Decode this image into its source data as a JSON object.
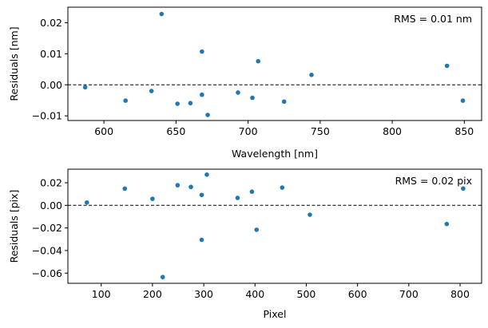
{
  "chart_data": [
    {
      "type": "scatter",
      "xlabel": "Wavelength [nm]",
      "ylabel": "Residuals [nm]",
      "annotation": "RMS = 0.01 nm",
      "xlim": [
        575,
        862
      ],
      "ylim": [
        -0.0115,
        0.025
      ],
      "xticks": [
        600,
        650,
        700,
        750,
        800,
        850
      ],
      "yticks": [
        -0.01,
        0.0,
        0.01,
        0.02
      ],
      "ytick_labels": [
        "−0.01",
        "0.00",
        "0.01",
        "0.02"
      ],
      "reference_line": 0,
      "marker_color": "#1f77b4",
      "points": [
        {
          "x": 587,
          "y": -0.0008
        },
        {
          "x": 615,
          "y": -0.0051
        },
        {
          "x": 633,
          "y": -0.002
        },
        {
          "x": 640,
          "y": 0.0228
        },
        {
          "x": 651,
          "y": -0.0061
        },
        {
          "x": 660,
          "y": -0.0059
        },
        {
          "x": 668,
          "y": -0.0032
        },
        {
          "x": 668,
          "y": 0.0107
        },
        {
          "x": 672,
          "y": -0.0097
        },
        {
          "x": 693,
          "y": -0.0025
        },
        {
          "x": 703,
          "y": -0.0042
        },
        {
          "x": 707,
          "y": 0.0076
        },
        {
          "x": 725,
          "y": -0.0054
        },
        {
          "x": 744,
          "y": 0.0032
        },
        {
          "x": 838,
          "y": 0.0061
        },
        {
          "x": 849,
          "y": -0.0051
        }
      ]
    },
    {
      "type": "scatter",
      "xlabel": "Pixel",
      "ylabel": "Residuals [pix]",
      "annotation": "RMS = 0.02 pix",
      "xlim": [
        35,
        842
      ],
      "ylim": [
        -0.069,
        0.032
      ],
      "xticks": [
        100,
        200,
        300,
        400,
        500,
        600,
        700,
        800
      ],
      "yticks": [
        -0.06,
        -0.04,
        -0.02,
        0.0,
        0.02
      ],
      "ytick_labels": [
        "−0.06",
        "−0.04",
        "−0.02",
        "0.00",
        "0.02"
      ],
      "reference_line": 0,
      "marker_color": "#1f77b4",
      "points": [
        {
          "x": 72,
          "y": 0.0025
        },
        {
          "x": 146,
          "y": 0.0148
        },
        {
          "x": 200,
          "y": 0.0058
        },
        {
          "x": 220,
          "y": -0.0635
        },
        {
          "x": 249,
          "y": 0.0178
        },
        {
          "x": 275,
          "y": 0.0163
        },
        {
          "x": 296,
          "y": 0.0092
        },
        {
          "x": 296,
          "y": -0.0305
        },
        {
          "x": 306,
          "y": 0.0272
        },
        {
          "x": 366,
          "y": 0.0066
        },
        {
          "x": 394,
          "y": 0.0121
        },
        {
          "x": 403,
          "y": -0.0216
        },
        {
          "x": 453,
          "y": 0.0157
        },
        {
          "x": 507,
          "y": -0.0083
        },
        {
          "x": 774,
          "y": -0.0165
        },
        {
          "x": 806,
          "y": 0.0149
        }
      ]
    }
  ]
}
